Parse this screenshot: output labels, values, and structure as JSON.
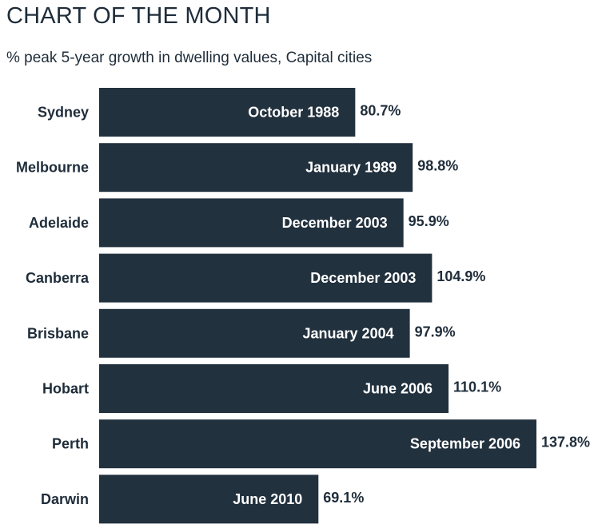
{
  "chart_data": {
    "type": "bar",
    "orientation": "horizontal",
    "title": "CHART OF THE MONTH",
    "subtitle": "% peak 5-year growth in dwelling values, Capital cities",
    "categories": [
      "Sydney",
      "Melbourne",
      "Adelaide",
      "Canberra",
      "Brisbane",
      "Hobart",
      "Perth",
      "Darwin"
    ],
    "values": [
      80.7,
      98.8,
      95.9,
      104.9,
      97.9,
      110.1,
      137.8,
      69.1
    ],
    "value_labels": [
      "80.7%",
      "98.8%",
      "95.9%",
      "104.9%",
      "97.9%",
      "110.1%",
      "137.8%",
      "69.1%"
    ],
    "bar_labels": [
      "October 1988",
      "January 1989",
      "December 2003",
      "December 2003",
      "January 2004",
      "June 2006",
      "September 2006",
      "June 2010"
    ],
    "bar_color": "#22313e",
    "grid": false,
    "legend": "none"
  }
}
